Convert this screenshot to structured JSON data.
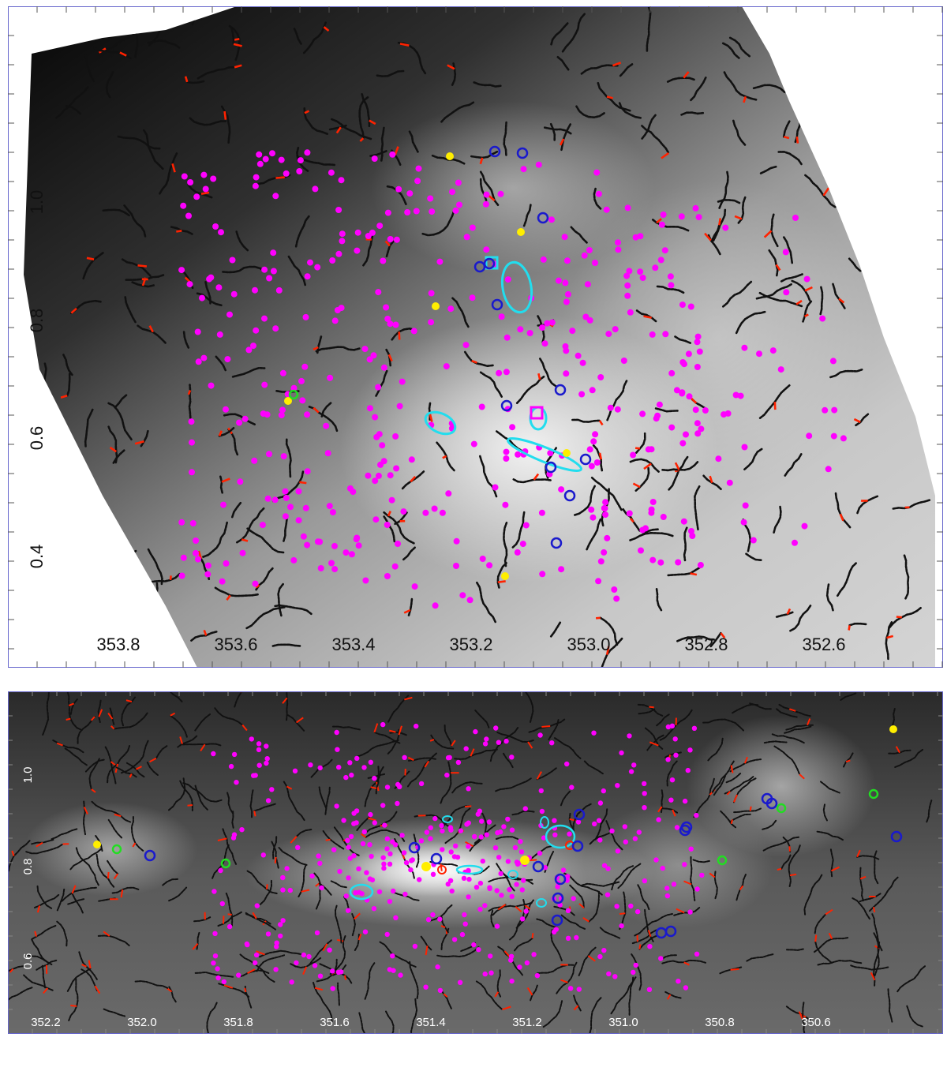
{
  "panels": [
    {
      "id": "top",
      "x_ticks": [
        "353.8",
        "353.6",
        "353.4",
        "353.2",
        "353.0",
        "352.8",
        "352.6"
      ],
      "y_ticks": [
        "1.0",
        "0.8",
        "0.6",
        "0.4"
      ]
    },
    {
      "id": "bottom",
      "x_ticks": [
        "352.2",
        "352.0",
        "351.8",
        "351.6",
        "351.4",
        "351.2",
        "351.0",
        "350.8",
        "350.6"
      ],
      "y_ticks": [
        "1.0",
        "0.8",
        "0.6"
      ]
    }
  ],
  "colors": {
    "filament": "#111111",
    "branch": "#ff2200",
    "source-dot": "#ff00ff",
    "blue-marker": "#1a1acc",
    "cyan-ellipse": "#22ddee",
    "yellow-marker": "#ffee00",
    "green-marker": "#22dd22",
    "frame": "#6666cc"
  }
}
